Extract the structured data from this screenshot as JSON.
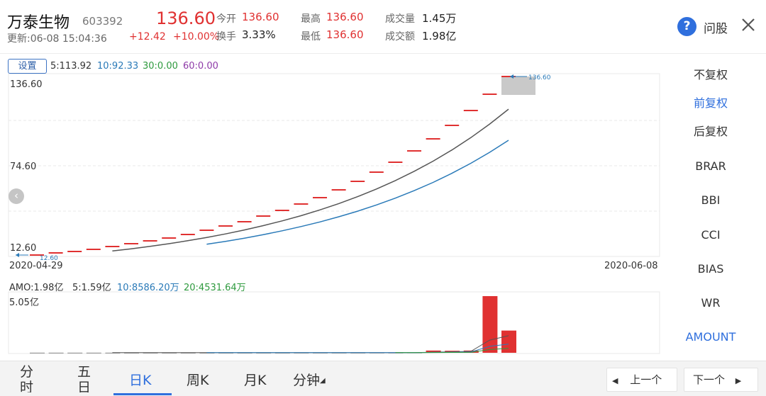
{
  "header": {
    "stock_name": "万泰生物",
    "stock_code": "603392",
    "update_time": "更新:06-08 15:04:36",
    "last_price": "136.60",
    "change": "+12.42",
    "change_pct": "+10.00%",
    "quotes": [
      {
        "label": "今开",
        "value": "136.60",
        "color": "red"
      },
      {
        "label": "换手",
        "value": "3.33%",
        "color": "dark"
      },
      {
        "label": "最高",
        "value": "136.60",
        "color": "red"
      },
      {
        "label": "最低",
        "value": "136.60",
        "color": "red"
      },
      {
        "label": "成交量",
        "value": "1.45万",
        "color": "dark"
      },
      {
        "label": "成交额",
        "value": "1.98亿",
        "color": "dark"
      }
    ],
    "help_icon_text": "?",
    "help_label": "问股",
    "icons": {
      "help": "question-circle-icon",
      "close": "close-x-icon"
    }
  },
  "chart": {
    "settings_label": "设置",
    "ma_legend": [
      {
        "text": "5:113.92",
        "color": "#333333"
      },
      {
        "text": "10:92.33",
        "color": "#2a7ab8"
      },
      {
        "text": "30:0.00",
        "color": "#2e9a3e"
      },
      {
        "text": "60:0.00",
        "color": "#8e3aa8"
      }
    ],
    "price_high": "136.60",
    "price_mid": "74.60",
    "price_low": "12.60",
    "max_marker": "136.60",
    "min_marker": "12.60",
    "start_date": "2020-04-29",
    "end_date": "2020-06-08",
    "amo_legend": [
      {
        "text": "AMO:1.98亿",
        "color": "#333333"
      },
      {
        "text": "5:1.59亿",
        "color": "#333333"
      },
      {
        "text": "10:8586.20万",
        "color": "#2a7ab8"
      },
      {
        "text": "20:4531.64万",
        "color": "#2e9a3e"
      }
    ],
    "volume_max": "5.05亿",
    "scroll_icon": "chevron-left-icon",
    "colors": {
      "up": "#e03131",
      "ma5": "#555555",
      "ma10": "#2a7ab8",
      "ma20": "#2e9a3e",
      "grid": "#e8e8e8",
      "accent": "#2f6fdd"
    }
  },
  "chart_data": {
    "type": "bar",
    "title": "",
    "x_range": [
      "2020-04-29",
      "2020-06-08"
    ],
    "ylim": [
      12.6,
      136.6
    ],
    "price_ticks": [
      136.6,
      74.6,
      12.6
    ],
    "closes": [
      12.6,
      13.86,
      15.25,
      16.78,
      18.46,
      20.31,
      22.34,
      24.57,
      27.03,
      29.73,
      32.7,
      35.97,
      39.57,
      43.53,
      47.88,
      52.67,
      57.94,
      63.73,
      70.1,
      77.11,
      84.82,
      93.3,
      102.63,
      112.89,
      124.18,
      136.6
    ],
    "series": [
      {
        "name": "5",
        "values": [
          null,
          null,
          null,
          null,
          15.39,
          16.93,
          18.63,
          20.49,
          22.54,
          24.8,
          27.27,
          30.0,
          33.0,
          36.3,
          39.93,
          43.92,
          48.32,
          53.15,
          58.47,
          64.31,
          70.74,
          77.81,
          85.59,
          94.15,
          103.56,
          113.92
        ]
      },
      {
        "name": "10",
        "values": [
          null,
          null,
          null,
          null,
          null,
          null,
          null,
          null,
          null,
          20.09,
          22.1,
          24.31,
          26.74,
          29.42,
          32.36,
          35.59,
          39.15,
          43.07,
          47.38,
          52.11,
          57.33,
          63.06,
          69.36,
          76.3,
          83.93,
          92.33
        ]
      }
    ],
    "volume": {
      "ymax": 5.05,
      "unit": "亿",
      "values": [
        0.01,
        0.01,
        0.01,
        0.01,
        0.01,
        0.01,
        0.01,
        0.01,
        0.01,
        0.01,
        0.01,
        0.01,
        0.01,
        0.01,
        0.015,
        0.015,
        0.015,
        0.015,
        0.02,
        0.02,
        0.03,
        0.2,
        0.18,
        0.2,
        5.05,
        1.98
      ]
    }
  },
  "right_panel": {
    "items": [
      {
        "label": "不复权",
        "active": false
      },
      {
        "label": "前复权",
        "active": true
      },
      {
        "label": "后复权",
        "active": false
      },
      {
        "label": "BRAR",
        "active": false
      },
      {
        "label": "BBI",
        "active": false
      },
      {
        "label": "CCI",
        "active": false
      },
      {
        "label": "BIAS",
        "active": false
      },
      {
        "label": "WR",
        "active": false
      },
      {
        "label": "AMOUNT",
        "active": true
      }
    ]
  },
  "bottom_bar": {
    "tabs": [
      {
        "label": "分时",
        "active": false
      },
      {
        "label": "五日",
        "active": false
      },
      {
        "label": "日K",
        "active": true
      },
      {
        "label": "周K",
        "active": false
      },
      {
        "label": "月K",
        "active": false
      },
      {
        "label": "分钟",
        "active": false
      }
    ],
    "minute_dropdown_icon": "caret-down-icon",
    "prev_label": "上一个",
    "next_label": "下一个",
    "prev_icon": "triangle-left-icon",
    "next_icon": "triangle-right-icon"
  }
}
